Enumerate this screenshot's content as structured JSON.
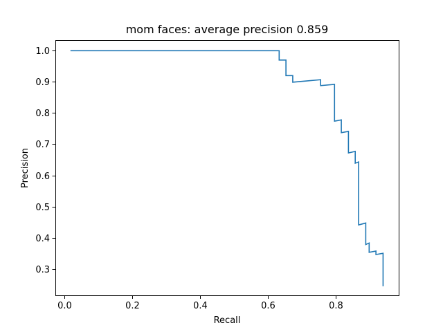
{
  "colors": {
    "series": "#1f77b4",
    "background": "#ffffff",
    "axes": "#000000"
  },
  "chart_data": {
    "type": "line",
    "title": "mom faces: average precision 0.859",
    "xlabel": "Recall",
    "ylabel": "Precision",
    "xlim": [
      -0.026,
      0.985
    ],
    "ylim": [
      0.215,
      1.034
    ],
    "grid": false,
    "legend": "none",
    "x_ticks": [
      0.0,
      0.2,
      0.4,
      0.6,
      0.8
    ],
    "x_tick_labels": [
      "0.0",
      "0.2",
      "0.4",
      "0.6",
      "0.8"
    ],
    "y_ticks": [
      0.3,
      0.4,
      0.5,
      0.6,
      0.7,
      0.8,
      0.9,
      1.0
    ],
    "y_tick_labels": [
      "0.3",
      "0.4",
      "0.5",
      "0.6",
      "0.7",
      "0.8",
      "0.9",
      "1.0"
    ],
    "series": [
      {
        "step": "post",
        "points": [
          [
            0.02,
            1.0
          ],
          [
            0.633,
            1.0
          ],
          [
            0.633,
            0.97
          ],
          [
            0.653,
            0.97
          ],
          [
            0.653,
            0.92
          ],
          [
            0.673,
            0.92
          ],
          [
            0.673,
            0.899
          ],
          [
            0.755,
            0.907
          ],
          [
            0.755,
            0.888
          ],
          [
            0.796,
            0.892
          ],
          [
            0.796,
            0.774
          ],
          [
            0.816,
            0.778
          ],
          [
            0.816,
            0.737
          ],
          [
            0.837,
            0.741
          ],
          [
            0.837,
            0.672
          ],
          [
            0.857,
            0.677
          ],
          [
            0.857,
            0.639
          ],
          [
            0.867,
            0.643
          ],
          [
            0.867,
            0.441
          ],
          [
            0.888,
            0.447
          ],
          [
            0.888,
            0.378
          ],
          [
            0.898,
            0.383
          ],
          [
            0.898,
            0.353
          ],
          [
            0.918,
            0.357
          ],
          [
            0.918,
            0.346
          ],
          [
            0.939,
            0.35
          ],
          [
            0.939,
            0.246
          ]
        ]
      }
    ]
  }
}
